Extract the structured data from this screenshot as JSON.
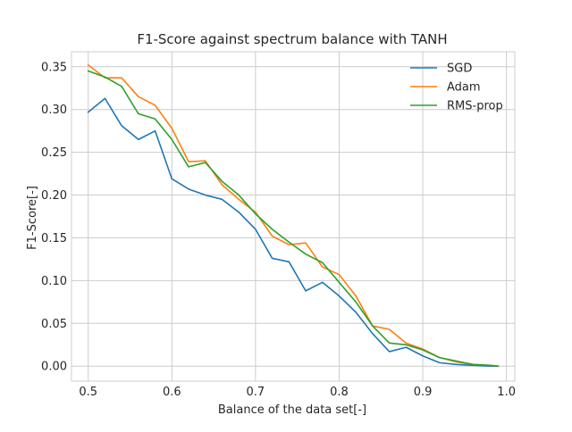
{
  "chart_data": {
    "type": "line",
    "title": "F1-Score against spectrum balance with TANH",
    "xlabel": "Balance of the data set[-]",
    "ylabel": "F1-Score[-]",
    "xlim": [
      0.48,
      1.01
    ],
    "ylim": [
      -0.0175,
      0.3675
    ],
    "xticks": [
      "0.5",
      "0.6",
      "0.7",
      "0.8",
      "0.9",
      "1.0"
    ],
    "yticks": [
      "0.00",
      "0.05",
      "0.10",
      "0.15",
      "0.20",
      "0.25",
      "0.30",
      "0.35"
    ],
    "grid": true,
    "legend_position": "top-right",
    "x": [
      0.5,
      0.52,
      0.54,
      0.56,
      0.58,
      0.6,
      0.62,
      0.64,
      0.66,
      0.68,
      0.7,
      0.72,
      0.74,
      0.76,
      0.78,
      0.8,
      0.82,
      0.84,
      0.86,
      0.88,
      0.9,
      0.92,
      0.94,
      0.96,
      0.98,
      0.99
    ],
    "series": [
      {
        "name": "SGD",
        "color": "#1f77b4",
        "values": [
          0.297,
          0.313,
          0.281,
          0.265,
          0.275,
          0.219,
          0.207,
          0.2,
          0.195,
          0.18,
          0.16,
          0.126,
          0.122,
          0.088,
          0.098,
          0.082,
          0.063,
          0.038,
          0.017,
          0.022,
          0.012,
          0.004,
          0.002,
          0.001,
          0.0,
          0.0
        ]
      },
      {
        "name": "Adam",
        "color": "#ff7f0e",
        "values": [
          0.352,
          0.337,
          0.337,
          0.315,
          0.305,
          0.278,
          0.239,
          0.24,
          0.212,
          0.195,
          0.18,
          0.152,
          0.142,
          0.144,
          0.116,
          0.107,
          0.082,
          0.047,
          0.043,
          0.027,
          0.02,
          0.01,
          0.005,
          0.002,
          0.001,
          0.0
        ]
      },
      {
        "name": "RMS-prop",
        "color": "#2ca02c",
        "values": [
          0.345,
          0.338,
          0.327,
          0.295,
          0.289,
          0.265,
          0.233,
          0.238,
          0.216,
          0.2,
          0.178,
          0.16,
          0.145,
          0.131,
          0.121,
          0.098,
          0.075,
          0.047,
          0.027,
          0.025,
          0.019,
          0.01,
          0.006,
          0.002,
          0.001,
          0.0
        ]
      }
    ]
  }
}
